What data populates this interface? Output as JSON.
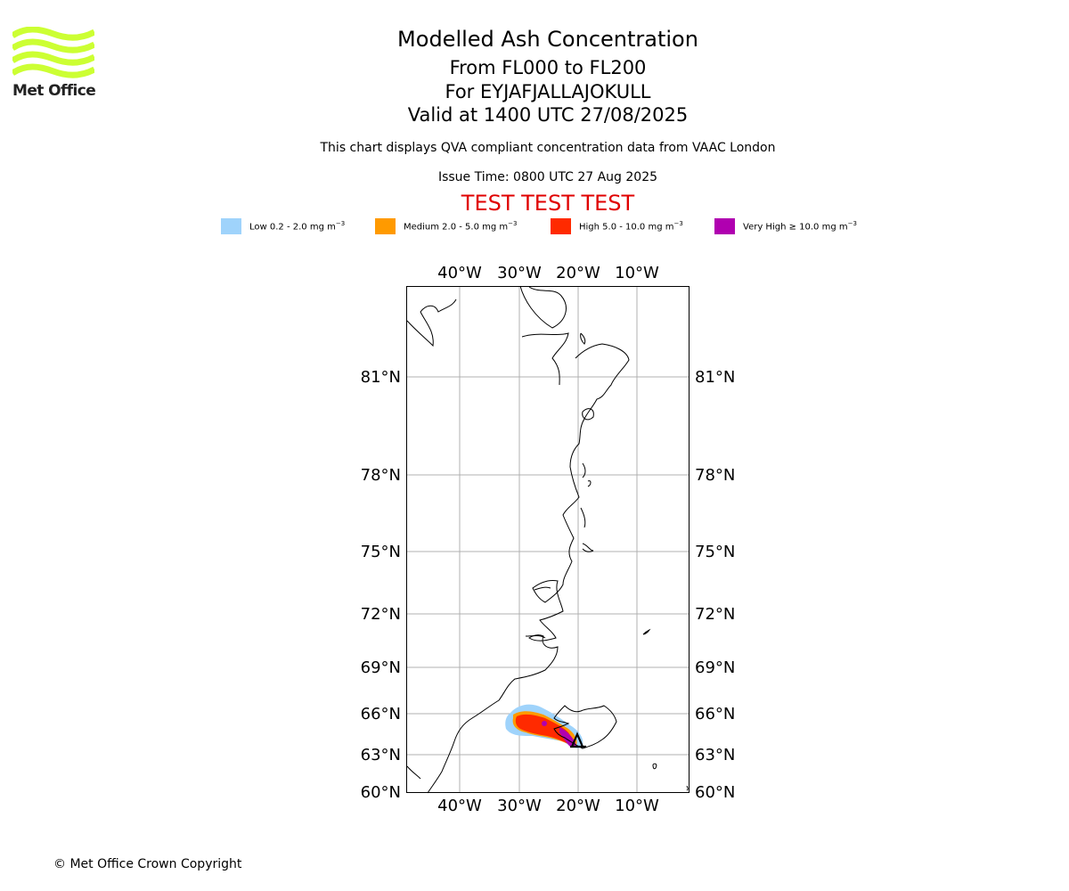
{
  "header": {
    "logo_text": "Met Office",
    "title": "Modelled Ash Concentration",
    "flight_levels": "From FL000 to FL200",
    "volcano": "For EYJAFJALLAJOKULL",
    "valid_time": "Valid at 1400 UTC 27/08/2025",
    "description": "This chart displays QVA compliant concentration data from VAAC London",
    "issue_time": "Issue Time: 0800 UTC 27 Aug 2025",
    "test_banner": "TEST TEST TEST"
  },
  "legend": [
    {
      "label": "Low 0.2 - 2.0 mg m",
      "unit_exp": "−3",
      "color": "#9fd3fb"
    },
    {
      "label": "Medium 2.0 - 5.0 mg m",
      "unit_exp": "−3",
      "color": "#ff9a00"
    },
    {
      "label": "High 5.0 - 10.0 mg m",
      "unit_exp": "−3",
      "color": "#ff2a00"
    },
    {
      "label": "Very High ≥ 10.0 mg m",
      "unit_exp": "−3",
      "color": "#b000b0"
    }
  ],
  "map": {
    "lon_ticks": [
      "40°W",
      "30°W",
      "20°W",
      "10°W"
    ],
    "lat_ticks": [
      "81°N",
      "78°N",
      "75°N",
      "72°N",
      "69°N",
      "66°N",
      "63°N",
      "60°N"
    ],
    "colors": {
      "grid": "#b0b0b0",
      "coast": "#000000",
      "border": "#000000"
    }
  },
  "footer": {
    "copyright": "© Met Office Crown Copyright"
  }
}
